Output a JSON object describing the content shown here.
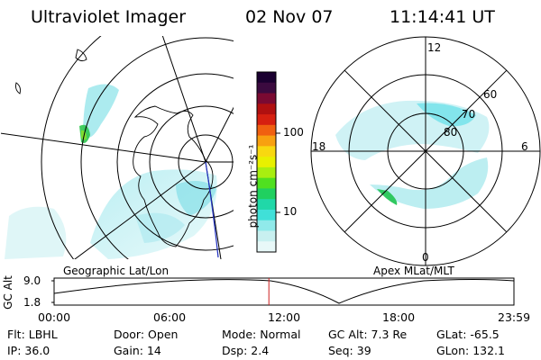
{
  "header": {
    "instrument": "Ultraviolet Imager",
    "date": "02 Nov 07",
    "time": "11:14:41 UT"
  },
  "colorbar": {
    "unit_label": "photon cm⁻²s⁻¹",
    "ticks": [
      "100",
      "10"
    ],
    "colors": [
      "#1a0030",
      "#3b0a3f",
      "#7a0a32",
      "#b01010",
      "#d62010",
      "#f06010",
      "#f8a010",
      "#f8d810",
      "#e8f000",
      "#a8ee10",
      "#50e020",
      "#20d060",
      "#20d8a8",
      "#40e0d8",
      "#90eaea",
      "#c8f0f0",
      "#e8f8f8"
    ]
  },
  "left_panel": {
    "label": "Geographic Lat/Lon"
  },
  "right_panel": {
    "label": "Apex MLat/MLT",
    "mlt_labels": {
      "top": "12",
      "left": "18",
      "right": "6",
      "bottom": "0"
    },
    "lat_labels": [
      "60",
      "70",
      "80"
    ]
  },
  "altitude_plot": {
    "ylabel": "GC Alt",
    "yticks": [
      "9.0",
      "1.8"
    ],
    "xticks": [
      "00:00",
      "06:00",
      "12:00",
      "18:00",
      "23:59"
    ],
    "marker_color": "#cc2020",
    "current_time_fraction": 0.467
  },
  "info_rows": [
    [
      {
        "label": "Flt:",
        "value": "LBHL"
      },
      {
        "label": "Door:",
        "value": "Open"
      },
      {
        "label": "Mode:",
        "value": "Normal"
      },
      {
        "label": "GC Alt:",
        "value": "7.3 Re"
      },
      {
        "label": "GLat:",
        "value": "-65.5"
      }
    ],
    [
      {
        "label": "IP:",
        "value": "36.0"
      },
      {
        "label": "Gain:",
        "value": "14"
      },
      {
        "label": "Dsp:",
        "value": "2.4"
      },
      {
        "label": "Seq:",
        "value": "39"
      },
      {
        "label": "GLon:",
        "value": "132.1"
      }
    ]
  ]
}
